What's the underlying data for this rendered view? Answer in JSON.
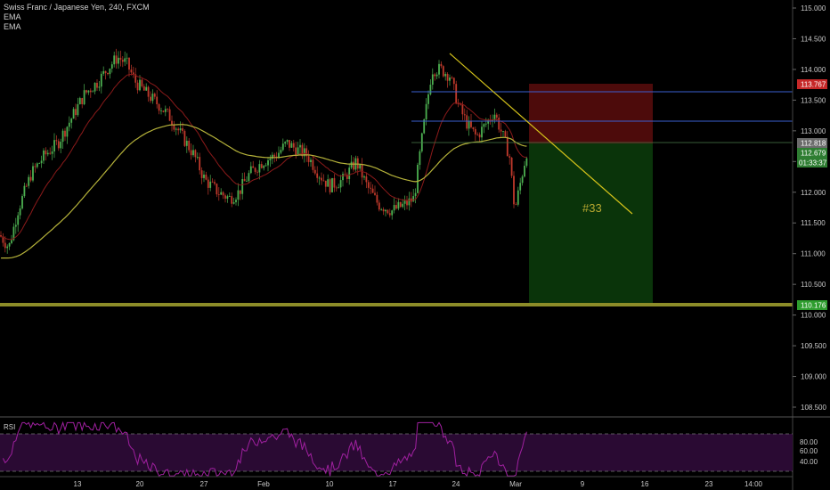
{
  "header": {
    "title": "Swiss Franc / Japanese Yen, 240, FXCM",
    "indicator1": "EMA",
    "indicator2": "EMA",
    "rsi_label": "RSI"
  },
  "colors": {
    "background": "#000000",
    "up_candle": "#4caf50",
    "down_candle": "#c0392b",
    "ema_fast": "#8b1a1a",
    "ema_slow": "#b5b23a",
    "trendline": "#d4c21a",
    "horizontal_support": "#8c8c28",
    "blue_lines": "#3a5fd0",
    "stop_zone": "#5a0d0d",
    "target_zone": "#0b3a0b",
    "rsi_line": "#a020a0",
    "rsi_band": "#2a0a33"
  },
  "chart_data": {
    "type": "candlestick",
    "symbol": "Swiss Franc / Japanese Yen",
    "timeframe": "240",
    "source": "FXCM",
    "ylim": [
      108.3,
      115.2
    ],
    "y_ticks": [
      "115.000",
      "114.500",
      "114.000",
      "113.500",
      "113.000",
      "112.500",
      "112.000",
      "111.500",
      "111.000",
      "110.500",
      "110.000",
      "109.500",
      "109.000",
      "108.500"
    ],
    "x_ticks": [
      "13",
      "20",
      "27",
      "Feb",
      "10",
      "17",
      "24",
      "Mar",
      "9",
      "16",
      "23",
      "14:00"
    ],
    "price_tags": {
      "stop": "113.767",
      "entry": "112.818",
      "current": "112.679",
      "countdown": "01:33:37",
      "target": "110.176"
    },
    "levels": {
      "blue_upper": 113.63,
      "blue_lower": 113.15,
      "entry_line": 112.81,
      "support": 110.18
    },
    "annotation": "#33",
    "rsi": {
      "levels": [
        "80.00",
        "60.00",
        "40.00"
      ],
      "upper_band": 70,
      "lower_band": 30
    }
  }
}
